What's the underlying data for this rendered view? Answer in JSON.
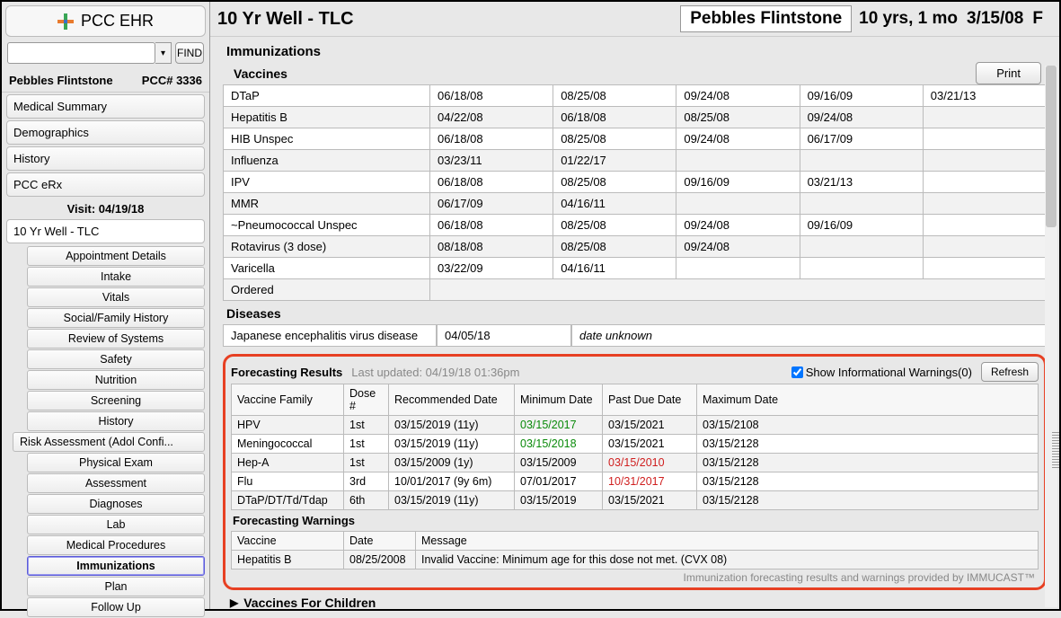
{
  "app": {
    "name": "PCC EHR",
    "find_label": "FIND"
  },
  "patient": {
    "name": "Pebbles Flintstone",
    "pcc_num": "PCC# 3336",
    "age": "10 yrs, 1 mo",
    "dob": "3/15/08",
    "sex": "F"
  },
  "nav": {
    "items": [
      "Medical Summary",
      "Demographics",
      "History",
      "PCC eRx"
    ]
  },
  "visit": {
    "header": "Visit: 04/19/18",
    "title": "10 Yr Well - TLC",
    "subnav": [
      "Appointment Details",
      "Intake",
      "Vitals",
      "Social/Family History",
      "Review of Systems",
      "Safety",
      "Nutrition",
      "Screening",
      "History"
    ],
    "risk": "Risk Assessment (Adol Confi...",
    "subnav2": [
      "Physical Exam",
      "Assessment",
      "Diagnoses",
      "Lab",
      "Medical Procedures",
      "Immunizations",
      "Plan",
      "Follow Up"
    ],
    "active": "Immunizations"
  },
  "page": {
    "title": "10 Yr Well - TLC",
    "section": "Immunizations",
    "vaccines_label": "Vaccines",
    "print_label": "Print"
  },
  "vaccines": {
    "rows": [
      {
        "name": "DTaP",
        "d": [
          "06/18/08",
          "08/25/08",
          "09/24/08",
          "09/16/09",
          "03/21/13"
        ]
      },
      {
        "name": "Hepatitis B",
        "d": [
          "04/22/08",
          "06/18/08",
          "08/25/08",
          "09/24/08",
          ""
        ]
      },
      {
        "name": "HIB Unspec",
        "d": [
          "06/18/08",
          "08/25/08",
          "09/24/08",
          "06/17/09",
          ""
        ]
      },
      {
        "name": "Influenza",
        "d": [
          "03/23/11",
          "01/22/17",
          "",
          "",
          ""
        ]
      },
      {
        "name": "IPV",
        "d": [
          "06/18/08",
          "08/25/08",
          "09/16/09",
          "03/21/13",
          ""
        ]
      },
      {
        "name": "MMR",
        "d": [
          "06/17/09",
          "04/16/11",
          "",
          "",
          ""
        ]
      },
      {
        "name": "~Pneumococcal Unspec",
        "d": [
          "06/18/08",
          "08/25/08",
          "09/24/08",
          "09/16/09",
          ""
        ]
      },
      {
        "name": "Rotavirus (3 dose)",
        "d": [
          "08/18/08",
          "08/25/08",
          "09/24/08",
          "",
          ""
        ]
      },
      {
        "name": "Varicella",
        "d": [
          "03/22/09",
          "04/16/11",
          "",
          "",
          ""
        ]
      },
      {
        "name": "Ordered",
        "d": [
          "",
          "",
          "",
          "",
          ""
        ]
      }
    ]
  },
  "diseases": {
    "label": "Diseases",
    "name": "Japanese encephalitis virus disease",
    "date": "04/05/18",
    "note": "date unknown"
  },
  "forecast": {
    "title": "Forecasting Results",
    "updated": "Last updated: 04/19/18 01:36pm",
    "show_warnings_label": "Show Informational Warnings(0)",
    "refresh_label": "Refresh",
    "headers": [
      "Vaccine Family",
      "Dose #",
      "Recommended Date",
      "Minimum Date",
      "Past Due Date",
      "Maximum Date"
    ],
    "rows": [
      {
        "fam": "HPV",
        "dose": "1st",
        "rec": "03/15/2019 (11y)",
        "min": "03/15/2017",
        "min_cls": "green",
        "past": "03/15/2021",
        "past_cls": "",
        "max": "03/15/2108"
      },
      {
        "fam": "Meningococcal",
        "dose": "1st",
        "rec": "03/15/2019 (11y)",
        "min": "03/15/2018",
        "min_cls": "green",
        "past": "03/15/2021",
        "past_cls": "",
        "max": "03/15/2128"
      },
      {
        "fam": "Hep-A",
        "dose": "1st",
        "rec": "03/15/2009 (1y)",
        "min": "03/15/2009",
        "min_cls": "",
        "past": "03/15/2010",
        "past_cls": "red",
        "max": "03/15/2128"
      },
      {
        "fam": "Flu",
        "dose": "3rd",
        "rec": "10/01/2017 (9y 6m)",
        "min": "07/01/2017",
        "min_cls": "",
        "past": "10/31/2017",
        "past_cls": "red",
        "max": "03/15/2128"
      },
      {
        "fam": "DTaP/DT/Td/Tdap",
        "dose": "6th",
        "rec": "03/15/2019 (11y)",
        "min": "03/15/2019",
        "min_cls": "",
        "past": "03/15/2021",
        "past_cls": "",
        "max": "03/15/2128"
      }
    ],
    "warnings_title": "Forecasting Warnings",
    "warn_headers": [
      "Vaccine",
      "Date",
      "Message"
    ],
    "warn_rows": [
      {
        "v": "Hepatitis B",
        "date": "08/25/2008",
        "msg": "Invalid Vaccine: Minimum age for this dose not met. (CVX 08)"
      }
    ],
    "provider": "Immunization forecasting results and warnings provided by IMMUCAST™"
  },
  "vfc_label": "Vaccines For Children"
}
